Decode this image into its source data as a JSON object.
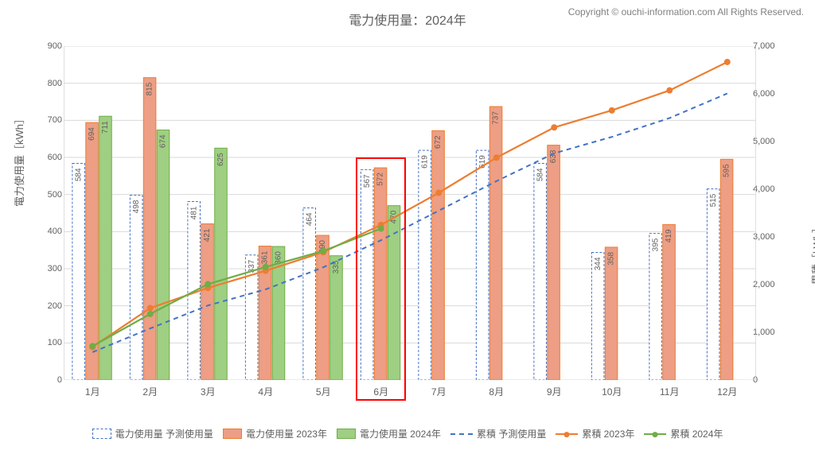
{
  "title": "電力使用量：2024年",
  "copyright": "Copyright © ouchi-information.com All Rights Reserved.",
  "y_label_left": "電力使用量［kWh］",
  "y_label_right": "累積［kWh］",
  "chart": {
    "type": "bar+line",
    "categories": [
      "1月",
      "2月",
      "3月",
      "4月",
      "5月",
      "6月",
      "7月",
      "8月",
      "9月",
      "10月",
      "11月",
      "12月"
    ],
    "y_left": {
      "min": 0,
      "max": 900,
      "step": 100
    },
    "y_right": {
      "min": 0,
      "max": 7000,
      "step": 1000,
      "fmt": "comma"
    },
    "grid_color": "#d9d9d9",
    "border_color": "#bfbfbf",
    "background": "#ffffff",
    "bar_group_width": 0.7,
    "bars": [
      {
        "name": "電力使用量 予測使用量",
        "fill": "#ffffff",
        "stroke": "#4472c4",
        "dash": "3,2",
        "data": [
          584,
          498,
          481,
          337,
          464,
          567,
          619,
          619,
          584,
          344,
          395,
          515
        ]
      },
      {
        "name": "電力使用量 2023年",
        "fill": "#ed9e84",
        "stroke": "#ed7d31",
        "dash": "",
        "data": [
          694,
          815,
          421,
          361,
          390,
          572,
          672,
          737,
          633,
          358,
          419,
          595
        ]
      },
      {
        "name": "電力使用量 2024年",
        "fill": "#9fcf82",
        "stroke": "#70ad47",
        "dash": "",
        "data": [
          711,
          674,
          625,
          360,
          335,
          470,
          null,
          null,
          null,
          null,
          null,
          null
        ]
      }
    ],
    "lines": [
      {
        "name": "累積 予測使用量",
        "stroke": "#4472c4",
        "dash": "6,5",
        "width": 2,
        "marker": false,
        "data": [
          584,
          1082,
          1563,
          1900,
          2364,
          2931,
          3550,
          4169,
          4753,
          5097,
          5492,
          6007
        ]
      },
      {
        "name": "累積 2023年",
        "stroke": "#ed7d31",
        "dash": "",
        "width": 2.2,
        "marker": true,
        "marker_fill": "#ed7d31",
        "data": [
          694,
          1509,
          1930,
          2291,
          2681,
          3253,
          3925,
          4662,
          5295,
          5653,
          6072,
          6667
        ]
      },
      {
        "name": "累積 2024年",
        "stroke": "#70ad47",
        "dash": "",
        "width": 2.2,
        "marker": true,
        "marker_fill": "#70ad47",
        "data": [
          711,
          1385,
          2010,
          2370,
          2705,
          3175,
          null,
          null,
          null,
          null,
          null,
          null
        ]
      }
    ],
    "highlight": {
      "month_index": 5,
      "color": "#ff0000"
    }
  },
  "legend": {
    "items": [
      {
        "label": "電力使用量 予測使用量",
        "type": "bar",
        "fill": "#ffffff",
        "stroke": "#4472c4",
        "dash": "3,2"
      },
      {
        "label": "電力使用量 2023年",
        "type": "bar",
        "fill": "#ed9e84",
        "stroke": "#ed7d31",
        "dash": ""
      },
      {
        "label": "電力使用量 2024年",
        "type": "bar",
        "fill": "#9fcf82",
        "stroke": "#70ad47",
        "dash": ""
      },
      {
        "label": "累積 予測使用量",
        "type": "line",
        "stroke": "#4472c4",
        "dash": "dashed",
        "marker": false
      },
      {
        "label": "累積 2023年",
        "type": "line",
        "stroke": "#ed7d31",
        "dash": "solid",
        "marker": true
      },
      {
        "label": "累積 2024年",
        "type": "line",
        "stroke": "#70ad47",
        "dash": "solid",
        "marker": true
      }
    ]
  }
}
